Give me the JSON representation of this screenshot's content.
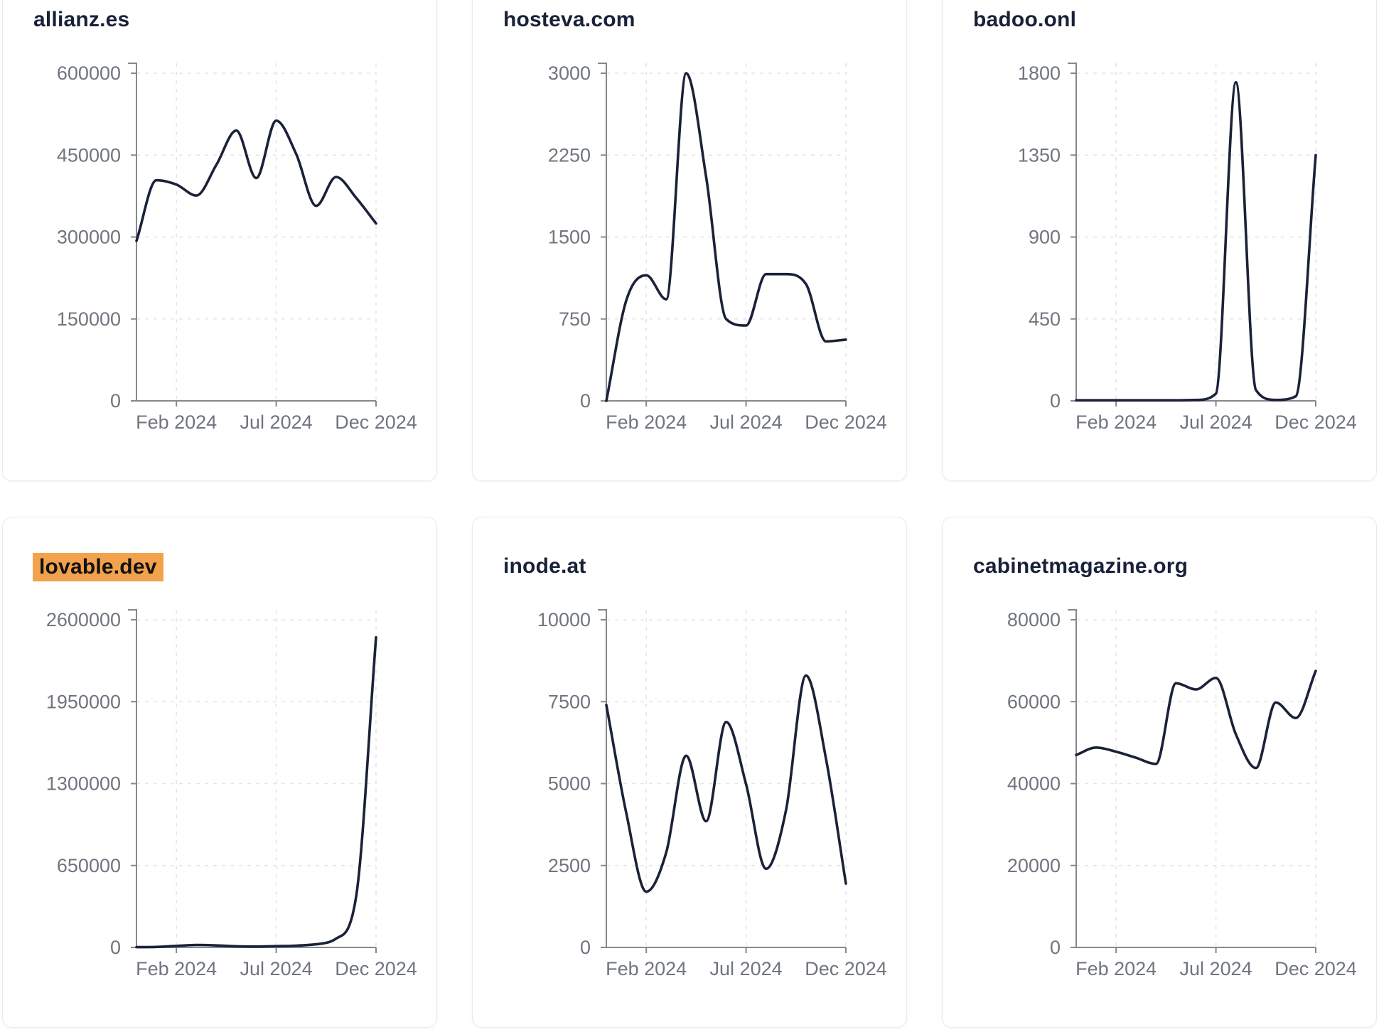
{
  "styles": {
    "line_color": "#1b2138",
    "grid_color": "#e4e5e9",
    "axis_color": "#85888e",
    "label_color": "#70757e",
    "title_color": "#192138",
    "highlight_bg": "#f2a24c",
    "highlight_text": "#111111",
    "card_border": "#e9eaee",
    "card_bg": "#ffffff"
  },
  "chart_data": [
    {
      "type": "line",
      "title": "allianz.es",
      "highlighted": false,
      "x": [
        "Dec 2023",
        "Jan 2024",
        "Feb 2024",
        "Mar 2024",
        "Apr 2024",
        "May 2024",
        "Jun 2024",
        "Jul 2024",
        "Aug 2024",
        "Sep 2024",
        "Oct 2024",
        "Nov 2024",
        "Dec 2024"
      ],
      "values": [
        293000,
        404000,
        396000,
        376000,
        432000,
        495000,
        408000,
        513000,
        452000,
        357000,
        410000,
        372000,
        325000
      ],
      "yticks": [
        0,
        150000,
        300000,
        450000,
        600000
      ],
      "ylim": [
        0,
        600000
      ],
      "xtick_labels": [
        "Feb 2024",
        "Jul 2024",
        "Dec 2024"
      ],
      "xtick_month_index": [
        2,
        7,
        12
      ],
      "grid": "dashed",
      "legend": "none"
    },
    {
      "type": "line",
      "title": "hosteva.com",
      "highlighted": false,
      "x": [
        "Dec 2023",
        "Jan 2024",
        "Feb 2024",
        "Mar 2024",
        "Apr 2024",
        "May 2024",
        "Jun 2024",
        "Jul 2024",
        "Aug 2024",
        "Sep 2024",
        "Oct 2024",
        "Nov 2024",
        "Dec 2024"
      ],
      "values": [
        0,
        920,
        1150,
        930,
        3000,
        2050,
        750,
        690,
        1160,
        1160,
        1070,
        545,
        560
      ],
      "yticks": [
        0,
        750,
        1500,
        2250,
        3000
      ],
      "ylim": [
        0,
        3000
      ],
      "xtick_labels": [
        "Feb 2024",
        "Jul 2024",
        "Dec 2024"
      ],
      "xtick_month_index": [
        2,
        7,
        12
      ],
      "grid": "dashed",
      "legend": "none"
    },
    {
      "type": "line",
      "title": "badoo.onl",
      "highlighted": false,
      "x": [
        "Dec 2023",
        "Jan 2024",
        "Feb 2024",
        "Mar 2024",
        "Apr 2024",
        "May 2024",
        "Jun 2024",
        "Jul 2024",
        "Aug 2024",
        "Sep 2024",
        "Oct 2024",
        "Nov 2024",
        "Dec 2024"
      ],
      "values": [
        3,
        3,
        3,
        3,
        3,
        3,
        5,
        40,
        1750,
        60,
        5,
        25,
        1350
      ],
      "yticks": [
        0,
        450,
        900,
        1350,
        1800
      ],
      "ylim": [
        0,
        1800
      ],
      "xtick_labels": [
        "Feb 2024",
        "Jul 2024",
        "Dec 2024"
      ],
      "xtick_month_index": [
        2,
        7,
        12
      ],
      "grid": "dashed",
      "legend": "none"
    },
    {
      "type": "line",
      "title": "lovable.dev",
      "highlighted": true,
      "x": [
        "Dec 2023",
        "Jan 2024",
        "Feb 2024",
        "Mar 2024",
        "Apr 2024",
        "May 2024",
        "Jun 2024",
        "Jul 2024",
        "Aug 2024",
        "Sep 2024",
        "Oct 2024",
        "Nov 2024",
        "Dec 2024"
      ],
      "values": [
        2000,
        4000,
        12000,
        20000,
        16000,
        9000,
        7000,
        10000,
        14000,
        25000,
        70000,
        400000,
        2460000
      ],
      "yticks": [
        0,
        650000,
        1300000,
        1950000,
        2600000
      ],
      "ylim": [
        0,
        2600000
      ],
      "xtick_labels": [
        "Feb 2024",
        "Jul 2024",
        "Dec 2024"
      ],
      "xtick_month_index": [
        2,
        7,
        12
      ],
      "grid": "dashed",
      "legend": "none"
    },
    {
      "type": "line",
      "title": "inode.at",
      "highlighted": false,
      "x": [
        "Dec 2023",
        "Jan 2024",
        "Feb 2024",
        "Mar 2024",
        "Apr 2024",
        "May 2024",
        "Jun 2024",
        "Jul 2024",
        "Aug 2024",
        "Sep 2024",
        "Oct 2024",
        "Nov 2024",
        "Dec 2024"
      ],
      "values": [
        7400,
        4100,
        1700,
        2900,
        5850,
        3850,
        6880,
        4980,
        2400,
        4190,
        8300,
        5770,
        1950
      ],
      "yticks": [
        0,
        2500,
        5000,
        7500,
        10000
      ],
      "ylim": [
        0,
        10000
      ],
      "xtick_labels": [
        "Feb 2024",
        "Jul 2024",
        "Dec 2024"
      ],
      "xtick_month_index": [
        2,
        7,
        12
      ],
      "grid": "dashed",
      "legend": "none"
    },
    {
      "type": "line",
      "title": "cabinetmagazine.org",
      "highlighted": false,
      "x": [
        "Dec 2023",
        "Jan 2024",
        "Feb 2024",
        "Mar 2024",
        "Apr 2024",
        "May 2024",
        "Jun 2024",
        "Jul 2024",
        "Aug 2024",
        "Sep 2024",
        "Oct 2024",
        "Nov 2024",
        "Dec 2024"
      ],
      "values": [
        47000,
        48800,
        47800,
        46300,
        44800,
        64500,
        63000,
        65800,
        52000,
        43800,
        59800,
        56000,
        67500
      ],
      "yticks": [
        0,
        20000,
        40000,
        60000,
        80000
      ],
      "ylim": [
        0,
        80000
      ],
      "xtick_labels": [
        "Feb 2024",
        "Jul 2024",
        "Dec 2024"
      ],
      "xtick_month_index": [
        2,
        7,
        12
      ],
      "grid": "dashed",
      "legend": "none"
    }
  ]
}
